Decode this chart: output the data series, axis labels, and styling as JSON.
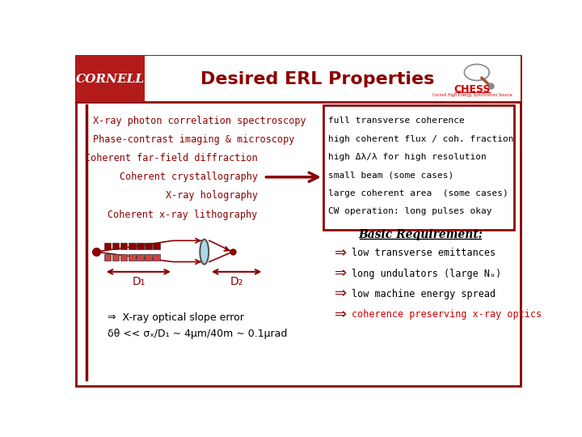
{
  "title": "Desired ERL Properties",
  "bg_color": "#FFFFFF",
  "cornell_red": "#B31B1B",
  "dark_red": "#8B0000",
  "left_items": [
    "X-ray photon correlation spectroscopy",
    "Phase-contrast imaging & microscopy",
    "Coherent far-field diffraction",
    "Coherent crystallography",
    "X-ray holography",
    "Coherent x-ray lithography"
  ],
  "right_items": [
    "full transverse coherence",
    "high coherent flux / coh. fraction",
    "high Δλ/λ for high resolution",
    "small beam (some cases)",
    "large coherent area  (some cases)",
    "CW operation: long pulses okay"
  ],
  "basic_req_title": "Basic Requirement:",
  "basic_req_items": [
    "low transverse emittances",
    "long undulators (large Nᵤ)",
    "low machine energy spread",
    "coherence preserving x-ray optics"
  ],
  "bottom_left_text1": "⇒  X-ray optical slope error",
  "bottom_left_text2": "δθ << σₓ/D₁ ~ 4μm/40m ~ 0.1μrad",
  "chess_red": "#CC0000"
}
